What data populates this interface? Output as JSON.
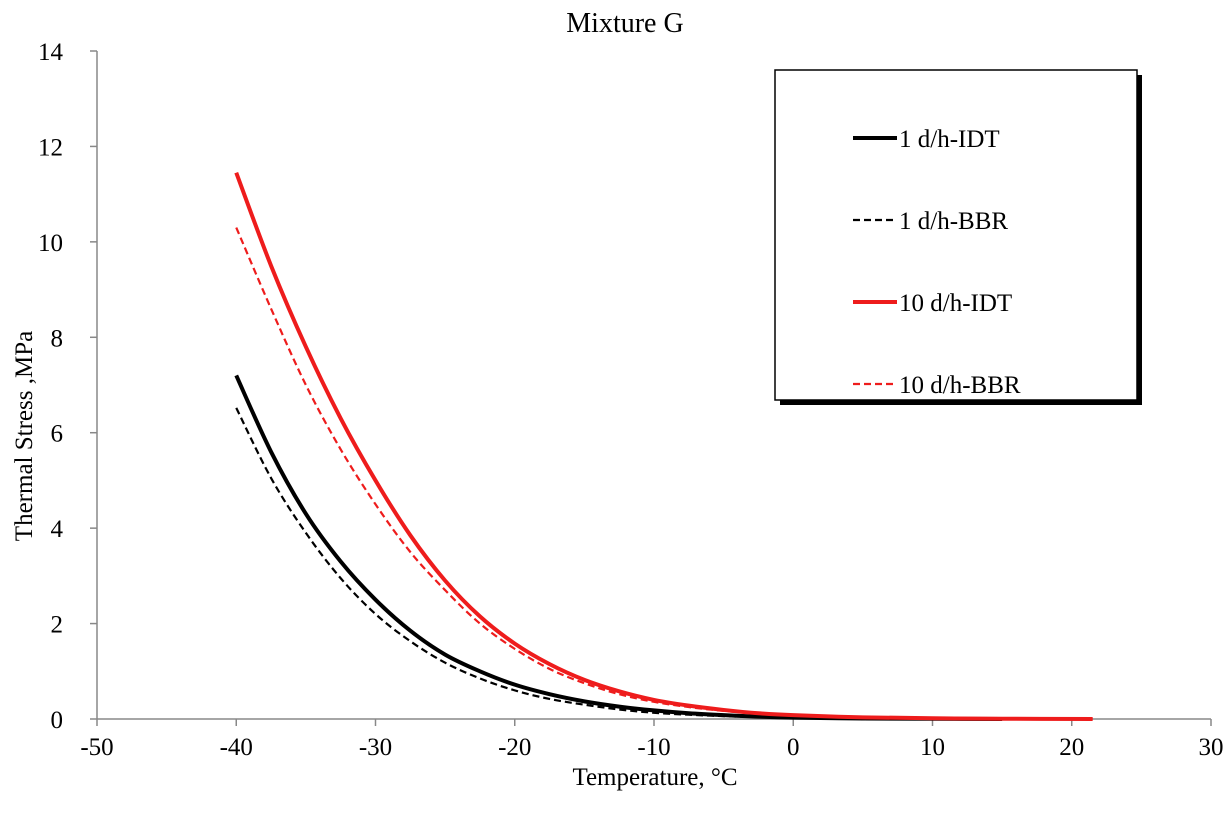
{
  "chart_data": {
    "type": "line",
    "title": "Mixture G",
    "xlabel": "Temperature, °C",
    "ylabel": "Thermal Stress ,MPa",
    "xlim": [
      -50,
      30
    ],
    "ylim": [
      0,
      14
    ],
    "xticks": [
      -50,
      -40,
      -30,
      -20,
      -10,
      0,
      10,
      20,
      30
    ],
    "yticks": [
      0,
      2,
      4,
      6,
      8,
      10,
      12,
      14
    ],
    "grid": false,
    "legend_position": "top-right",
    "series": [
      {
        "name": "1 d/h-IDT",
        "color": "#000000",
        "dash": "solid",
        "x": [
          -40,
          -37.5,
          -35,
          -32.5,
          -30,
          -27.5,
          -25,
          -22.5,
          -20,
          -17.5,
          -15,
          -12.5,
          -10,
          -7.5,
          -5,
          -2.5,
          0,
          5,
          10,
          15
        ],
        "y": [
          7.2,
          5.6,
          4.3,
          3.3,
          2.5,
          1.85,
          1.35,
          1.0,
          0.72,
          0.52,
          0.37,
          0.26,
          0.18,
          0.12,
          0.08,
          0.05,
          0.03,
          0.01,
          0.004,
          0.0
        ]
      },
      {
        "name": "1 d/h-BBR",
        "color": "#000000",
        "dash": "dashed",
        "x": [
          -40,
          -37.5,
          -35,
          -32.5,
          -30,
          -27.5,
          -25,
          -22.5,
          -20,
          -17.5,
          -15,
          -12.5,
          -10,
          -7.5,
          -5,
          -2.5,
          0,
          5,
          10,
          15
        ],
        "y": [
          6.52,
          5.05,
          3.9,
          2.95,
          2.2,
          1.63,
          1.18,
          0.85,
          0.6,
          0.42,
          0.3,
          0.2,
          0.13,
          0.09,
          0.06,
          0.04,
          0.02,
          0.008,
          0.003,
          0.0
        ]
      },
      {
        "name": "10 d/h-IDT",
        "color": "#ee1c1c",
        "dash": "solid",
        "x": [
          -40,
          -37.5,
          -35,
          -32.5,
          -30,
          -27.5,
          -25,
          -22.5,
          -20,
          -17.5,
          -15,
          -12.5,
          -10,
          -7.5,
          -5,
          -2.5,
          0,
          5,
          10,
          15,
          21.5
        ],
        "y": [
          11.45,
          9.5,
          7.8,
          6.3,
          5.0,
          3.85,
          2.9,
          2.15,
          1.58,
          1.15,
          0.82,
          0.58,
          0.4,
          0.28,
          0.19,
          0.12,
          0.08,
          0.035,
          0.015,
          0.006,
          0.0
        ]
      },
      {
        "name": "10 d/h-BBR",
        "color": "#ee1c1c",
        "dash": "dashed",
        "x": [
          -40,
          -37.5,
          -35,
          -32.5,
          -30,
          -27.5,
          -25,
          -22.5,
          -20,
          -17.5,
          -15,
          -12.5,
          -10,
          -7.5,
          -5,
          -2.5,
          0,
          5,
          10,
          15,
          21.5
        ],
        "y": [
          10.3,
          8.6,
          7.0,
          5.65,
          4.5,
          3.5,
          2.7,
          2.0,
          1.47,
          1.05,
          0.75,
          0.52,
          0.36,
          0.25,
          0.17,
          0.11,
          0.07,
          0.03,
          0.012,
          0.005,
          0.0
        ]
      }
    ]
  }
}
